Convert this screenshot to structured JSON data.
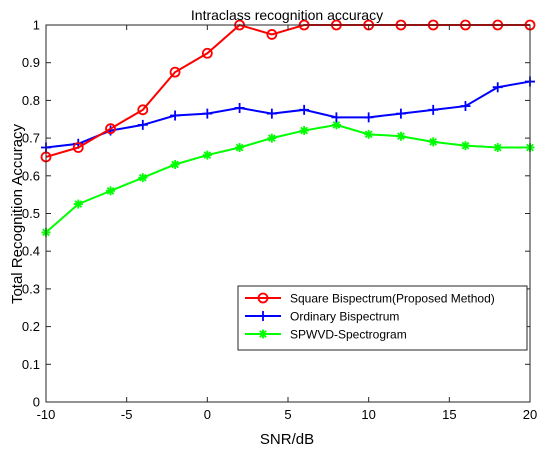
{
  "chart_data": {
    "type": "line",
    "title": "Intraclass recognition accuracy",
    "xlabel": "SNR/dB",
    "ylabel": "Total Recognition Accuracy",
    "xlim": [
      -10,
      20
    ],
    "ylim": [
      0,
      1
    ],
    "xticks": [
      "-10",
      "-5",
      "0",
      "5",
      "10",
      "15",
      "20"
    ],
    "yticks": [
      "0",
      "0.1",
      "0.2",
      "0.3",
      "0.4",
      "0.5",
      "0.6",
      "0.7",
      "0.8",
      "0.9",
      "1"
    ],
    "grid": false,
    "legend_position": "lower-right",
    "x": [
      -10,
      -8,
      -6,
      -4,
      -2,
      0,
      2,
      4,
      6,
      8,
      10,
      12,
      14,
      16,
      18,
      20
    ],
    "series": [
      {
        "name": "Square Bispectrum(Proposed Method)",
        "color": "#ff0000",
        "marker": "circle",
        "values": [
          0.65,
          0.675,
          0.725,
          0.775,
          0.875,
          0.925,
          1.0,
          0.975,
          1.0,
          1.0,
          1.0,
          1.0,
          1.0,
          1.0,
          1.0,
          1.0
        ]
      },
      {
        "name": "Ordinary Bispectrum",
        "color": "#0000ff",
        "marker": "plus",
        "values": [
          0.675,
          0.685,
          0.72,
          0.735,
          0.76,
          0.765,
          0.78,
          0.765,
          0.775,
          0.755,
          0.755,
          0.765,
          0.775,
          0.785,
          0.835,
          0.85
        ]
      },
      {
        "name": "SPWVD-Spectrogram",
        "color": "#00ff00",
        "marker": "asterisk",
        "values": [
          0.45,
          0.525,
          0.56,
          0.595,
          0.63,
          0.655,
          0.675,
          0.7,
          0.72,
          0.735,
          0.71,
          0.705,
          0.69,
          0.68,
          0.675,
          0.675
        ]
      }
    ]
  }
}
